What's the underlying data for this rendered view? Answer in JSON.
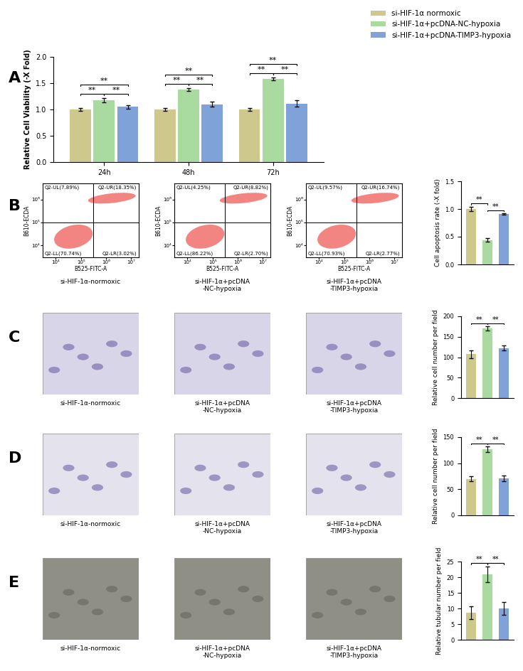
{
  "chart_data": [
    {
      "panel": "A",
      "type": "bar",
      "categories": [
        "24h",
        "48h",
        "72h"
      ],
      "series": [
        {
          "name": "si-HIF-1α normoxic",
          "color": "#cfc88c",
          "values": [
            1.0,
            1.0,
            1.0
          ],
          "errors": [
            0.03,
            0.03,
            0.03
          ]
        },
        {
          "name": "si-HIF-1α+pcDNA-NC-hypoxia",
          "color": "#a9dba0",
          "values": [
            1.18,
            1.38,
            1.58
          ],
          "errors": [
            0.04,
            0.03,
            0.03
          ]
        },
        {
          "name": "si-HIF-1α+pcDNA-TIMP3-hypoxia",
          "color": "#7fa2d9",
          "values": [
            1.05,
            1.1,
            1.11
          ],
          "errors": [
            0.03,
            0.05,
            0.06
          ]
        }
      ],
      "y_label": "Relative Cell Viability (-X Fold)",
      "ylim": [
        0,
        2.0
      ],
      "yticks": [
        {
          "value": 0,
          "label": "0.0"
        },
        {
          "value": 0.5,
          "label": "0.5"
        },
        {
          "value": 1.0,
          "label": "1.0"
        },
        {
          "value": 1.5,
          "label": "1.5"
        },
        {
          "value": 2.0,
          "label": "2.0"
        }
      ],
      "significance": [
        {
          "between": [
            0,
            1
          ],
          "label": "**"
        },
        {
          "between": [
            1,
            2
          ],
          "label": "**"
        },
        {
          "between": [
            0,
            2
          ],
          "label": "**"
        }
      ],
      "legend": "upper right"
    },
    {
      "panel": "B",
      "type": "bar",
      "categories": [
        null,
        null,
        null
      ],
      "values": [
        1.0,
        0.44,
        0.91
      ],
      "errors": [
        0.04,
        0.03,
        0.01
      ],
      "colors": [
        "#cfc88c",
        "#a9dba0",
        "#7fa2d9"
      ],
      "y_label": "Cell apoptosis rate (-X fold)",
      "ylim": [
        0,
        1.5
      ],
      "yticks": [
        {
          "value": 0,
          "label": "0.0"
        },
        {
          "value": 0.5,
          "label": "0.5"
        },
        {
          "value": 1.0,
          "label": "1.0"
        },
        {
          "value": 1.5,
          "label": "1.5"
        }
      ],
      "significance": [
        {
          "between": [
            0,
            1
          ],
          "label": "**"
        },
        {
          "between": [
            1,
            2
          ],
          "label": "**"
        }
      ],
      "tick_labels": "y"
    },
    {
      "panel": "C",
      "type": "bar",
      "categories": [
        null,
        null,
        null
      ],
      "values": [
        107,
        170,
        122
      ],
      "errors": [
        10,
        5,
        6
      ],
      "colors": [
        "#cfc88c",
        "#a9dba0",
        "#7fa2d9"
      ],
      "y_label": "Relative cell number per field",
      "ylim": [
        0,
        200
      ],
      "yticks": [
        0,
        50,
        100,
        150,
        200
      ],
      "significance": [
        {
          "between": [
            0,
            1
          ],
          "label": "**"
        },
        {
          "between": [
            1,
            2
          ],
          "label": "**"
        }
      ],
      "tick_labels": "y"
    },
    {
      "panel": "D",
      "type": "bar",
      "categories": [
        null,
        null,
        null
      ],
      "values": [
        70,
        127,
        71
      ],
      "errors": [
        5,
        5,
        5
      ],
      "colors": [
        "#cfc88c",
        "#a9dba0",
        "#7fa2d9"
      ],
      "y_label": "Relative cell number per field",
      "ylim": [
        0,
        150
      ],
      "yticks": [
        0,
        50,
        100,
        150
      ],
      "significance": [
        {
          "between": [
            0,
            1
          ],
          "label": "**"
        },
        {
          "between": [
            1,
            2
          ],
          "label": "**"
        }
      ],
      "tick_labels": "y"
    },
    {
      "panel": "E",
      "type": "bar",
      "categories": [
        null,
        null,
        null
      ],
      "values": [
        8.7,
        21,
        10
      ],
      "errors": [
        2,
        2.5,
        2
      ],
      "colors": [
        "#cfc88c",
        "#a9dba0",
        "#7fa2d9"
      ],
      "y_label": "Relative tubular number per field",
      "ylim": [
        0,
        25
      ],
      "yticks": [
        0,
        5,
        10,
        15,
        20,
        25
      ],
      "significance": [
        {
          "between": [
            0,
            1
          ],
          "label": "**"
        },
        {
          "between": [
            1,
            2
          ],
          "label": "**"
        }
      ],
      "tick_labels": "y"
    }
  ],
  "flow_cytometry": {
    "panel": "B",
    "x_label": "B525-FITC-A",
    "y_label": "B610-ECDA",
    "log": true,
    "xlim": [
      3000,
      20000000
    ],
    "ylim": [
      3000,
      5000000
    ],
    "xticks": [
      {
        "value": 10000,
        "label": "10⁴"
      },
      {
        "value": 100000,
        "label": "10⁵"
      },
      {
        "value": 1000000,
        "label": "10⁶"
      },
      {
        "value": 10000000,
        "label": "10⁷"
      }
    ],
    "yticks": [
      {
        "value": 10000,
        "label": "10⁴"
      },
      {
        "value": 100000,
        "label": "10⁵"
      },
      {
        "value": 1000000,
        "label": "10⁶"
      }
    ],
    "gates": {
      "x": 300000,
      "y": 100000
    },
    "plots": [
      {
        "caption": "si-HIF-1α-normoxic",
        "quadrants": {
          "UL": "Q2-UL(7.89%)",
          "UR": "Q2-UR(18.35%)",
          "LL": "Q2-LL(70.74%)",
          "LR": "Q2-LR(3.02%)"
        }
      },
      {
        "caption": "si-HIF-1α+pcDNA\n-NC-hypoxia",
        "quadrants": {
          "UL": "Q2-UL(4.25%)",
          "UR": "Q2-UR(8.82%)",
          "LL": "Q2-LL(86.22%)",
          "LR": "Q2-LR(2.70%)"
        }
      },
      {
        "caption": "si-HIF-1α+pcDNA\n-TIMP3-hypoxia",
        "quadrants": {
          "UL": "Q2-UL(9.57%)",
          "UR": "Q2-UR(16.74%)",
          "LL": "Q2-LL(70.93%)",
          "LR": "Q2-LR(2.77%)"
        }
      }
    ]
  },
  "images": [
    {
      "panel": "C",
      "captions": [
        "si-HIF-1α-normoxic",
        "si-HIF-1α+pcDNA\n-NC-hypoxia",
        "si-HIF-1α+pcDNA\n-TIMP3-hypoxia"
      ]
    },
    {
      "panel": "D",
      "captions": [
        "si-HIF-1α-normoxic",
        "si-HIF-1α+pcDNA\n-NC-hypoxia",
        "si-HIF-1α+pcDNA\n-TIMP3-hypoxia"
      ]
    },
    {
      "panel": "E",
      "captions": [
        "si-HIF-1α-normoxic",
        "si-HIF-1α+pcDNA\n-NC-hypoxia",
        "si-HIF-1α+pcDNA\n-TIMP3-hypoxia"
      ]
    }
  ]
}
